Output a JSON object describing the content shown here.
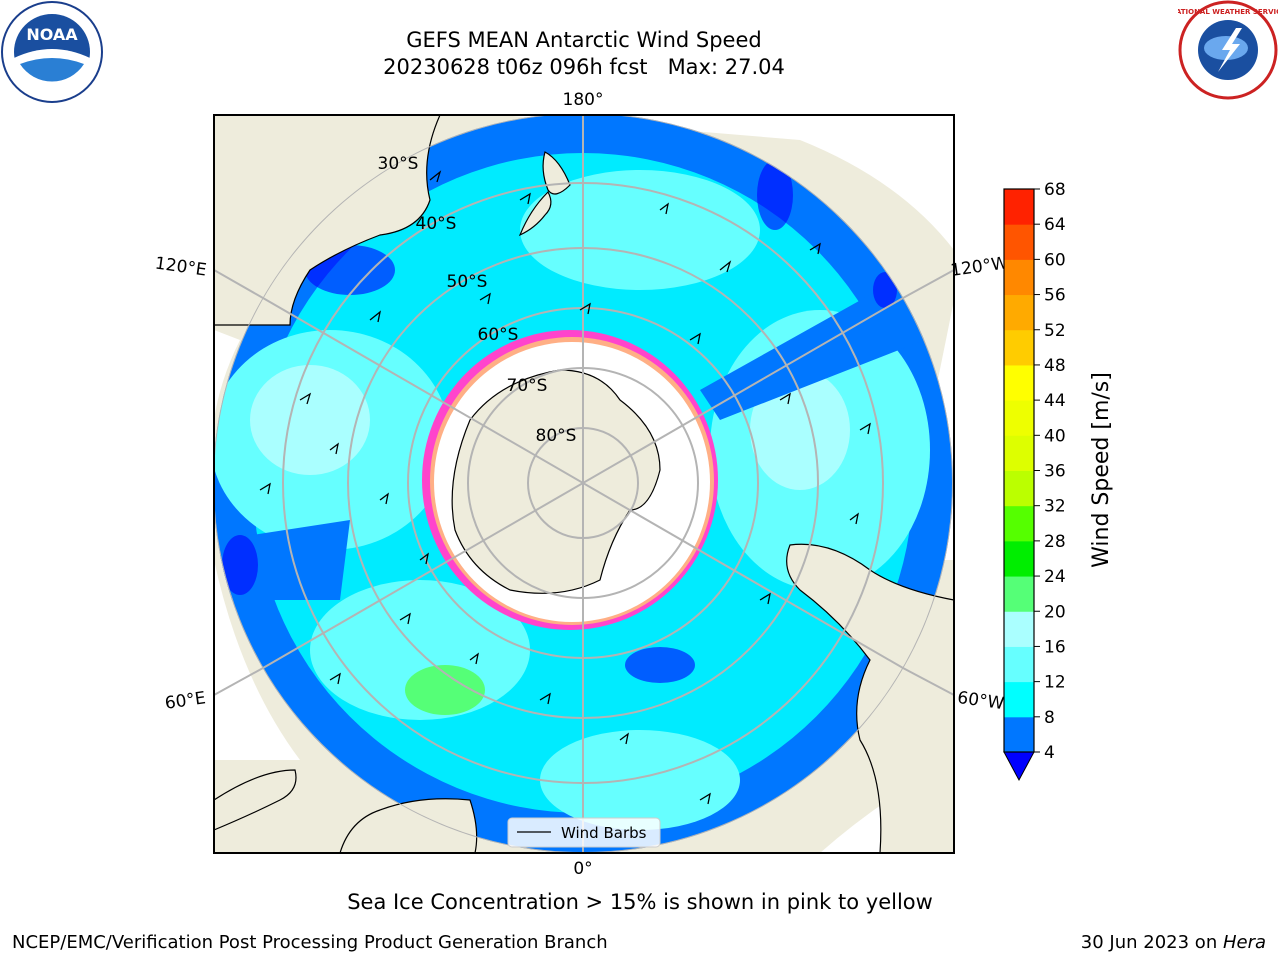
{
  "header": {
    "title_line1": "GEFS MEAN Antarctic Wind Speed",
    "title_line2": "20230628 t06z 096h fcst   Max: 27.04"
  },
  "map": {
    "longitude_labels": [
      "180°",
      "120°E",
      "120°W",
      "60°E",
      "60°W",
      "0°"
    ],
    "latitude_labels": [
      "30°S",
      "40°S",
      "50°S",
      "60°S",
      "70°S",
      "80°S"
    ],
    "legend_label": "Wind Barbs",
    "colors": {
      "land": "#eeecdc",
      "ice_shelf": "#ffffff",
      "ice_edge": "#ff44cc",
      "grid": "#b4b4b4"
    }
  },
  "colorbar": {
    "label": "Wind Speed [m/s]",
    "ticks": [
      "4",
      "8",
      "12",
      "16",
      "20",
      "24",
      "28",
      "32",
      "36",
      "40",
      "44",
      "48",
      "52",
      "56",
      "60",
      "64",
      "68"
    ],
    "colors": [
      "#0000ff",
      "#0077ff",
      "#00ffff",
      "#66ffff",
      "#aaffff",
      "#55ff77",
      "#00ee00",
      "#55ff00",
      "#bbff00",
      "#ddff00",
      "#eeff00",
      "#ffff00",
      "#ffcc00",
      "#ffaa00",
      "#ff8800",
      "#ff5500",
      "#ff2200",
      "#ff0000"
    ]
  },
  "footer": {
    "note": "Sea Ice Concentration > 15% is shown in pink to yellow",
    "left": "NCEP/EMC/Verification Post Processing Product Generation Branch",
    "right_prefix": "30 Jun 2023 on ",
    "right_host": "Hera"
  },
  "logos": {
    "noaa_text": "NOAA",
    "nws_text": "NATIONAL WEATHER SERVICE"
  }
}
